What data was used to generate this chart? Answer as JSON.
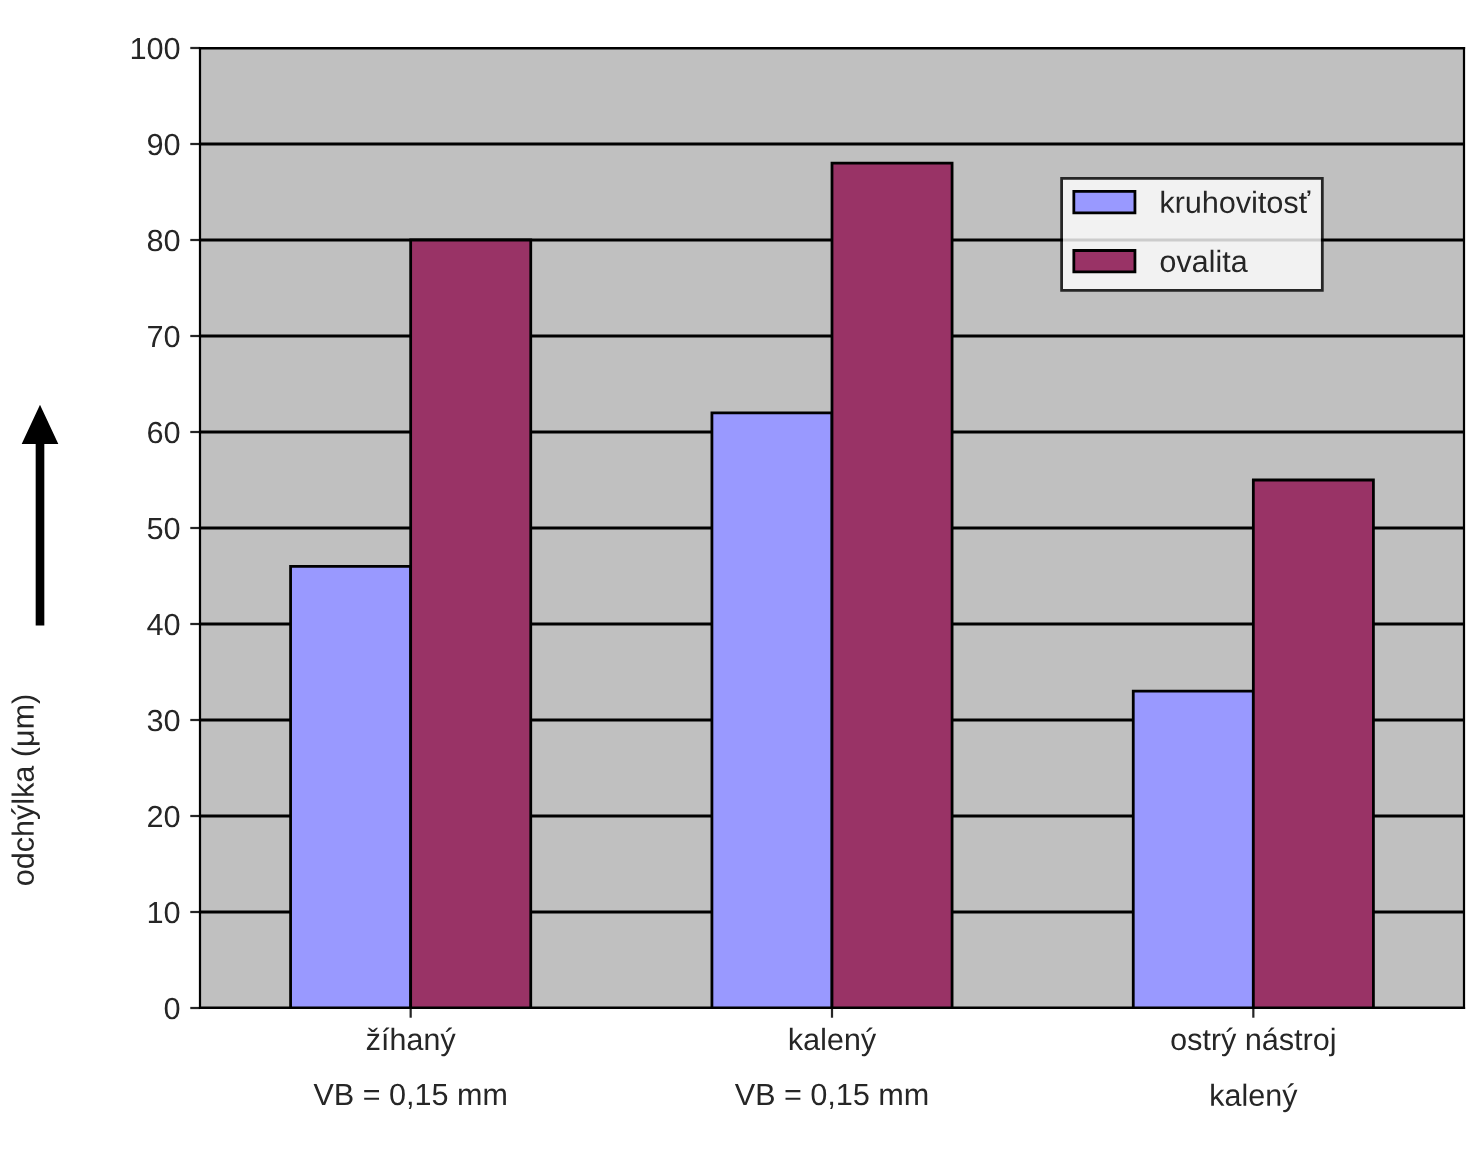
{
  "chart_data": {
    "type": "bar",
    "ylabel": "odchýlka (μm)",
    "categories": [
      "žíhaný\nVB = 0,15 mm",
      "kalený\nVB = 0,15 mm",
      "ostrý nástroj\nkalený"
    ],
    "series": [
      {
        "name": "kruhovitosť",
        "color": "#9999ff",
        "values": [
          46,
          62,
          33
        ]
      },
      {
        "name": "ovalita",
        "color": "#993366",
        "values": [
          80,
          88,
          55
        ]
      }
    ],
    "ylim": [
      0,
      100
    ],
    "yticks": [
      0,
      10,
      20,
      30,
      40,
      50,
      60,
      70,
      80,
      90,
      100
    ],
    "grid": "y",
    "legend": "top right"
  }
}
